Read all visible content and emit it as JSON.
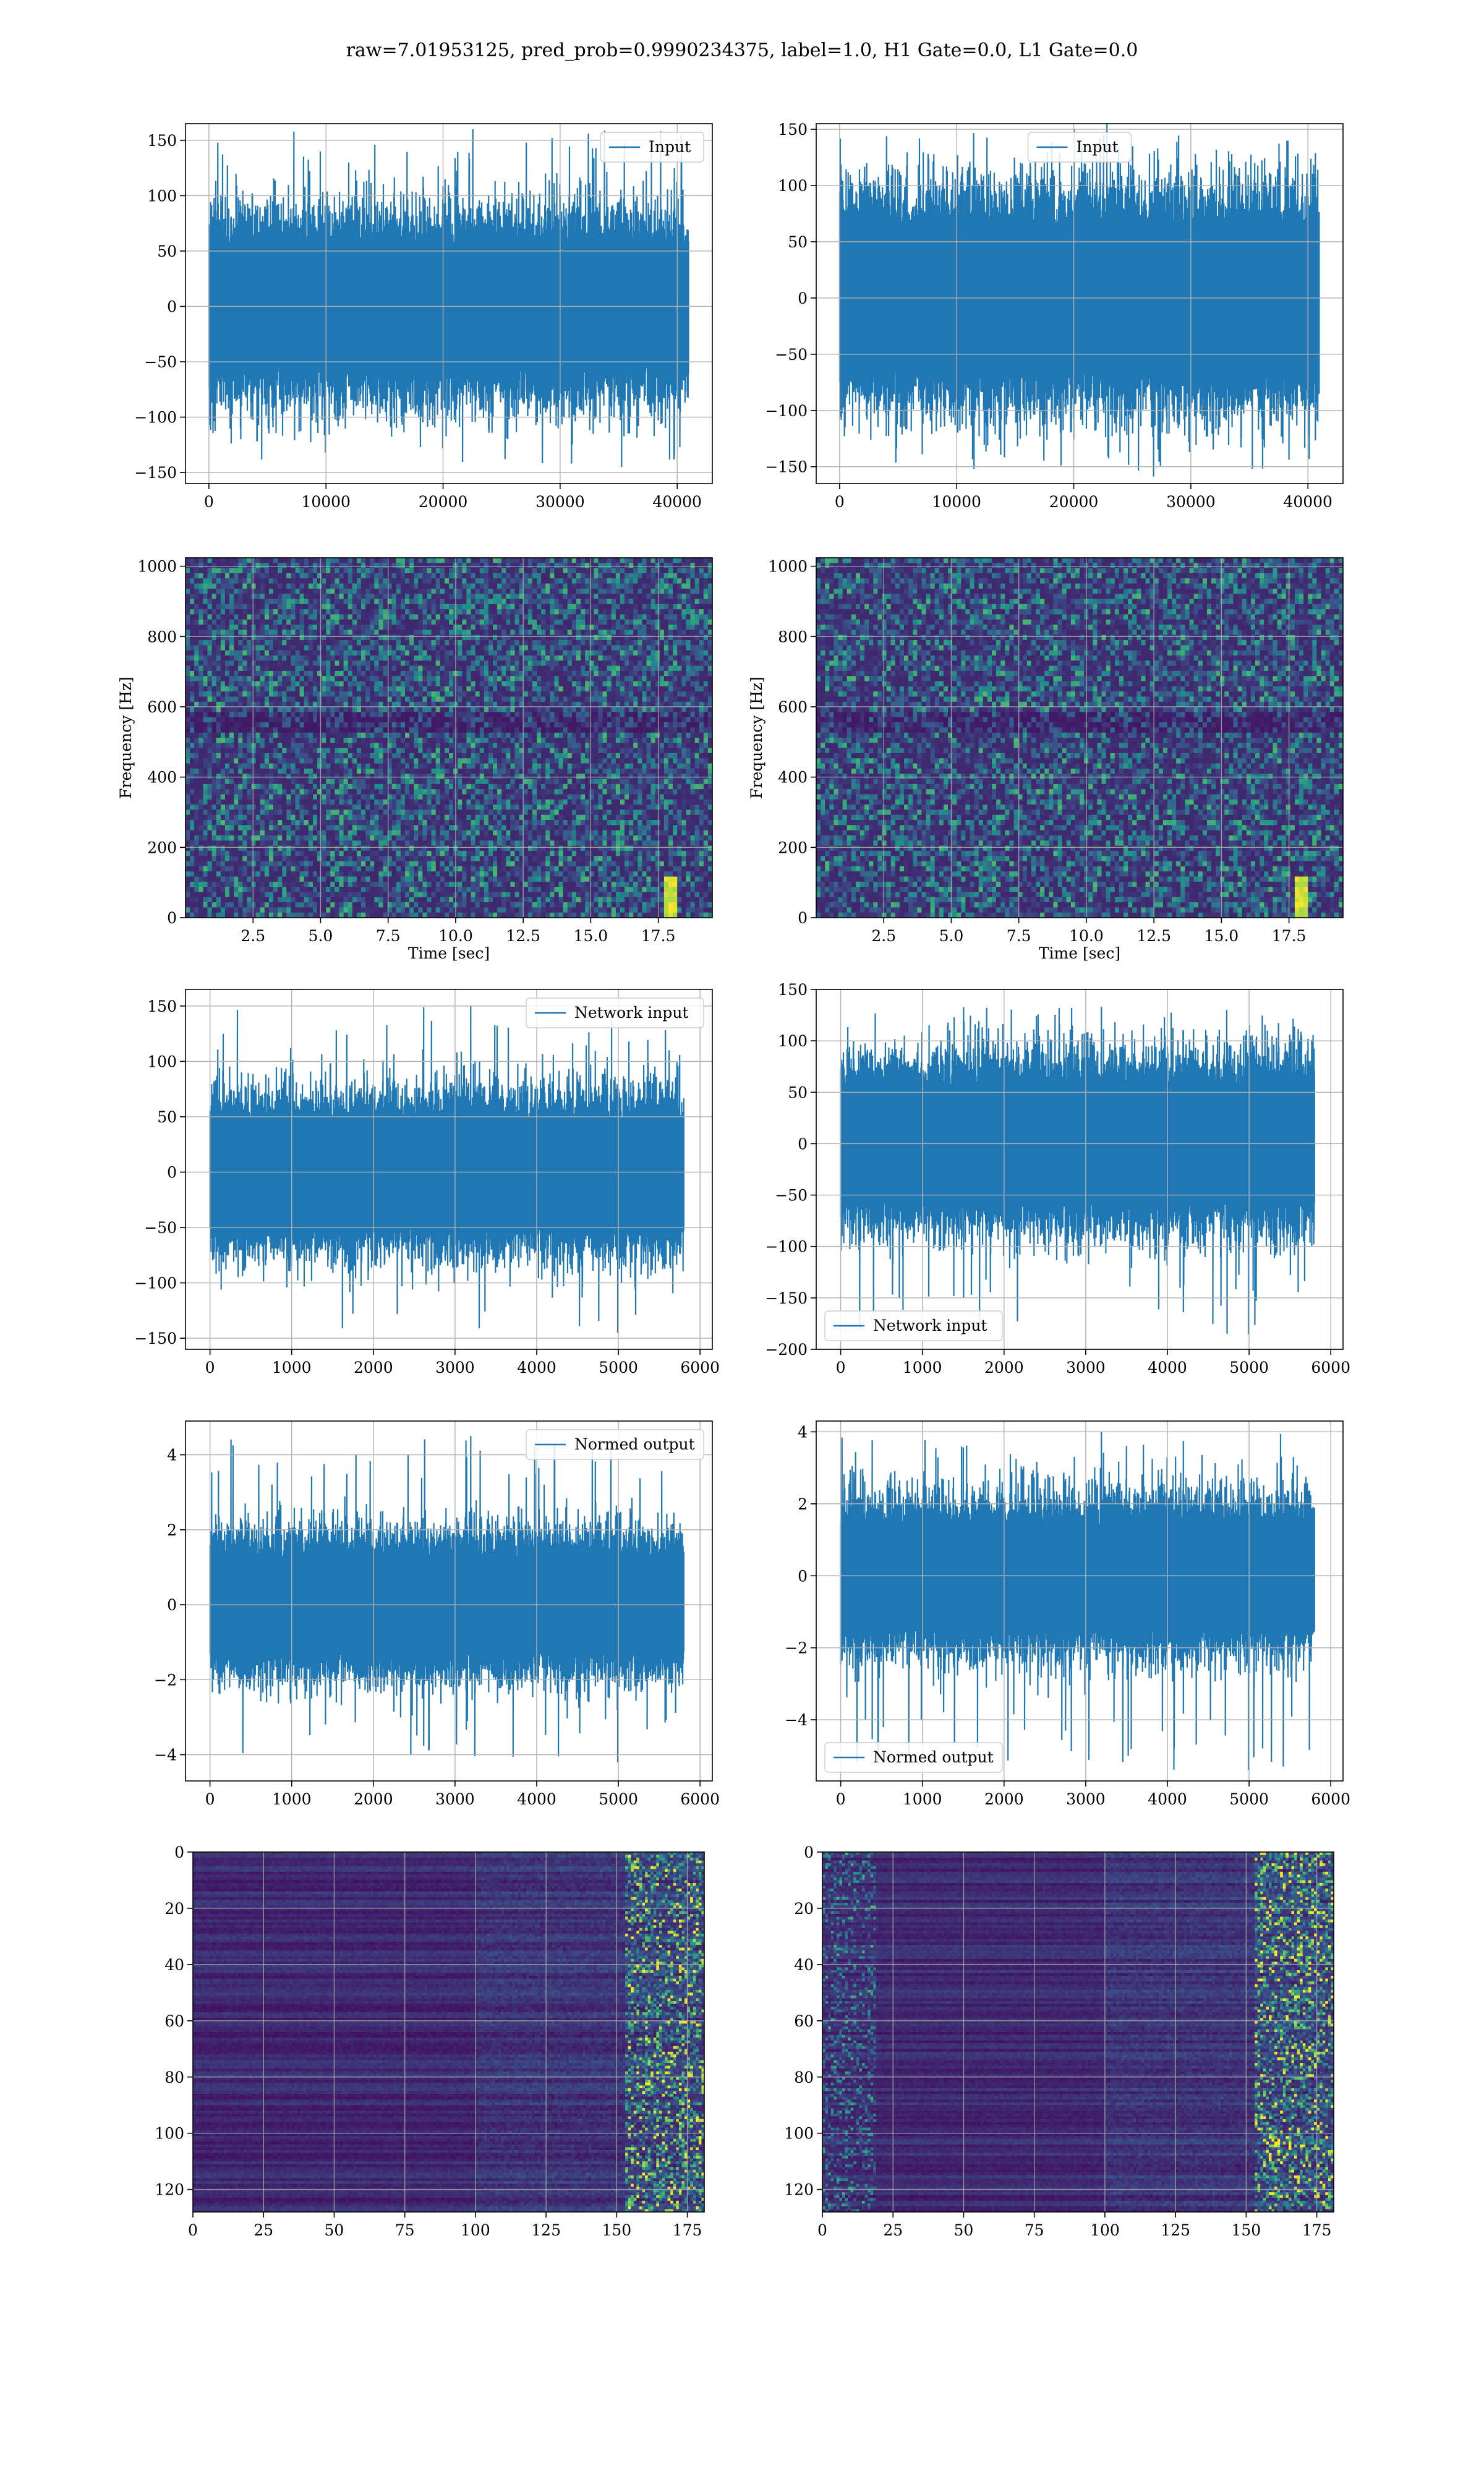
{
  "suptitle": "raw=7.01953125, pred_prob=0.9990234375, label=1.0, H1 Gate=0.0, L1 Gate=0.0",
  "colors": {
    "series": "#1f77b4",
    "grid": "#b0b0b0",
    "heat_low": "#440154",
    "heat_high": "#fde725"
  },
  "chart_data": [
    {
      "id": "h1-input",
      "type": "line",
      "legend": "Input",
      "legend_loc": "upper right",
      "xlim": [
        -2000,
        43000
      ],
      "ylim": [
        -160,
        165
      ],
      "xticks": [
        0,
        10000,
        20000,
        30000,
        40000
      ],
      "yticks": [
        -150,
        -100,
        -50,
        0,
        50,
        100,
        150
      ],
      "n_points": 40960,
      "typical_range": [
        -70,
        70
      ],
      "max": 160,
      "min": -145,
      "grid": true,
      "xlabel": "",
      "ylabel": ""
    },
    {
      "id": "l1-input",
      "type": "line",
      "legend": "Input",
      "legend_loc": "upper center",
      "xlim": [
        -2000,
        43000
      ],
      "ylim": [
        -165,
        155
      ],
      "xticks": [
        0,
        10000,
        20000,
        30000,
        40000
      ],
      "yticks": [
        -150,
        -100,
        -50,
        0,
        50,
        100,
        150
      ],
      "n_points": 40960,
      "typical_range": [
        -80,
        80
      ],
      "max": 145,
      "min": -152,
      "grid": true,
      "xlabel": "",
      "ylabel": ""
    },
    {
      "id": "h1-spectrogram",
      "type": "heatmap",
      "xlabel": "Time [sec]",
      "ylabel": "Frequency [Hz]",
      "xlim": [
        0,
        19.5
      ],
      "ylim": [
        0,
        1024
      ],
      "xticks": [
        2.5,
        5.0,
        7.5,
        10.0,
        12.5,
        15.0,
        17.5
      ],
      "yticks": [
        0,
        200,
        400,
        600,
        800,
        1000
      ],
      "grid": true,
      "note_event": "bright chirp near t≈18 s, f≈50 Hz"
    },
    {
      "id": "l1-spectrogram",
      "type": "heatmap",
      "xlabel": "Time [sec]",
      "ylabel": "Frequency [Hz]",
      "xlim": [
        0,
        19.5
      ],
      "ylim": [
        0,
        1024
      ],
      "xticks": [
        2.5,
        5.0,
        7.5,
        10.0,
        12.5,
        15.0,
        17.5
      ],
      "yticks": [
        0,
        200,
        400,
        600,
        800,
        1000
      ],
      "grid": true,
      "note_event": "bright chirp near t≈18 s, f≈60 Hz"
    },
    {
      "id": "h1-network-input",
      "type": "line",
      "legend": "Network input",
      "legend_loc": "upper right",
      "xlim": [
        -300,
        6150
      ],
      "ylim": [
        -160,
        165
      ],
      "xticks": [
        0,
        1000,
        2000,
        3000,
        4000,
        5000,
        6000
      ],
      "yticks": [
        -150,
        -100,
        -50,
        0,
        50,
        100,
        150
      ],
      "n_points": 5800,
      "typical_range": [
        -60,
        60
      ],
      "max": 150,
      "min": -145,
      "grid": true,
      "xlabel": "",
      "ylabel": ""
    },
    {
      "id": "l1-network-input",
      "type": "line",
      "legend": "Network input",
      "legend_loc": "lower left",
      "xlim": [
        -300,
        6150
      ],
      "ylim": [
        -200,
        150
      ],
      "xticks": [
        0,
        1000,
        2000,
        3000,
        4000,
        5000,
        6000
      ],
      "yticks": [
        -200,
        -150,
        -100,
        -50,
        0,
        50,
        100,
        150
      ],
      "n_points": 5800,
      "typical_range": [
        -70,
        70
      ],
      "max": 133,
      "min": -185,
      "grid": true,
      "xlabel": "",
      "ylabel": ""
    },
    {
      "id": "h1-normed-output",
      "type": "line",
      "legend": "Normed output",
      "legend_loc": "upper right",
      "xlim": [
        -300,
        6150
      ],
      "ylim": [
        -4.7,
        4.9
      ],
      "xticks": [
        0,
        1000,
        2000,
        3000,
        4000,
        5000,
        6000
      ],
      "yticks": [
        -4,
        -2,
        0,
        2,
        4
      ],
      "n_points": 5800,
      "typical_range": [
        -1.6,
        1.6
      ],
      "max": 4.5,
      "min": -4.2,
      "grid": true,
      "xlabel": "",
      "ylabel": ""
    },
    {
      "id": "l1-normed-output",
      "type": "line",
      "legend": "Normed output",
      "legend_loc": "lower left",
      "xlim": [
        -300,
        6150
      ],
      "ylim": [
        -5.7,
        4.3
      ],
      "xticks": [
        0,
        1000,
        2000,
        3000,
        4000,
        5000,
        6000
      ],
      "yticks": [
        -4,
        -2,
        0,
        2,
        4
      ],
      "n_points": 5800,
      "typical_range": [
        -1.8,
        1.8
      ],
      "max": 4.0,
      "min": -5.4,
      "grid": true,
      "xlabel": "",
      "ylabel": ""
    },
    {
      "id": "h1-feature-map",
      "type": "heatmap",
      "xlim": [
        0,
        181
      ],
      "ylim": [
        128,
        0
      ],
      "xticks": [
        0,
        25,
        50,
        75,
        100,
        125,
        150,
        175
      ],
      "yticks": [
        0,
        20,
        40,
        60,
        80,
        100,
        120
      ],
      "grid": true,
      "xlabel": "",
      "ylabel": ""
    },
    {
      "id": "l1-feature-map",
      "type": "heatmap",
      "xlim": [
        0,
        181
      ],
      "ylim": [
        128,
        0
      ],
      "xticks": [
        0,
        25,
        50,
        75,
        100,
        125,
        150,
        175
      ],
      "yticks": [
        0,
        20,
        40,
        60,
        80,
        100,
        120
      ],
      "grid": true,
      "xlabel": "",
      "ylabel": ""
    }
  ]
}
